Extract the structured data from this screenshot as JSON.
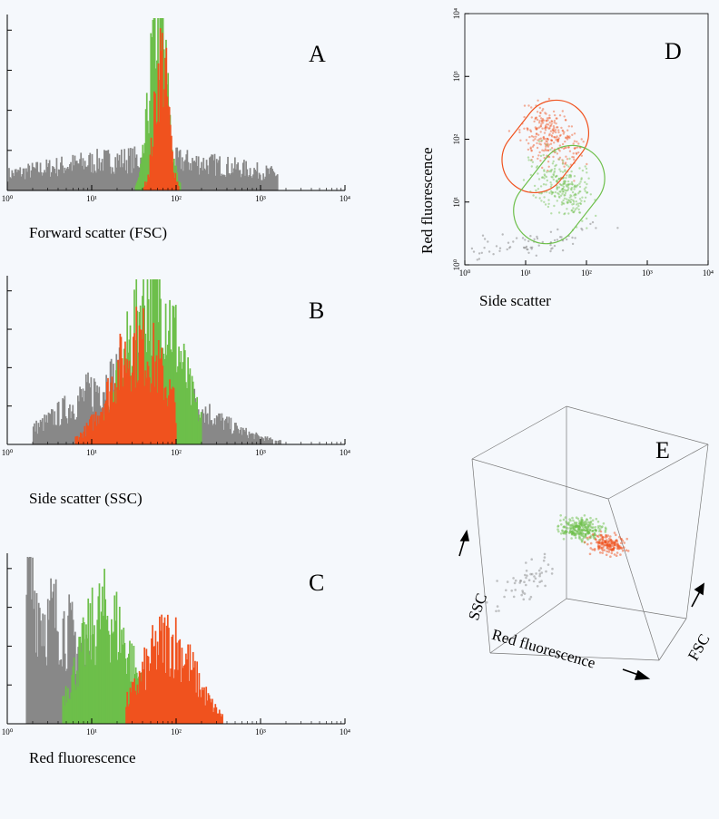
{
  "colors": {
    "gray": "#888888",
    "green": "#6dbf4a",
    "red": "#f0521e"
  },
  "panels": {
    "A": {
      "letter": "A",
      "xlabel": "Forward scatter (FSC)"
    },
    "B": {
      "letter": "B",
      "xlabel": "Side scatter (SSC)"
    },
    "C": {
      "letter": "C",
      "xlabel": "Red fluorescence"
    },
    "D": {
      "letter": "D",
      "xlabel": "Side scatter",
      "ylabel": "Red fluorescence"
    },
    "E": {
      "letter": "E",
      "axis_ssc": "SSC",
      "axis_red": "Red fluorescence",
      "axis_fsc": "FSC"
    }
  },
  "chart_data": [
    {
      "type": "area",
      "panel": "A",
      "xlabel": "Forward scatter (FSC)",
      "xscale": "log",
      "xlim": [
        1,
        10000
      ],
      "x_ticks": [
        "10⁰",
        "10¹",
        "10²",
        "10³",
        "10⁴"
      ],
      "series": [
        {
          "color": "gray",
          "peak_log": 1.6,
          "width": 1.4,
          "height": 0.18,
          "range": [
            0,
            3.2
          ]
        },
        {
          "color": "green",
          "peak_log": 1.78,
          "width": 0.1,
          "height": 1.0,
          "range": [
            1.5,
            2.05
          ]
        },
        {
          "color": "red",
          "peak_log": 1.82,
          "width": 0.08,
          "height": 0.75,
          "range": [
            1.6,
            2.05
          ]
        }
      ]
    },
    {
      "type": "area",
      "panel": "B",
      "xlabel": "Side scatter (SSC)",
      "xscale": "log",
      "xlim": [
        1,
        10000
      ],
      "x_ticks": [
        "10⁰",
        "10¹",
        "10²",
        "10³",
        "10⁴"
      ],
      "series": [
        {
          "color": "gray",
          "peak_log": 1.5,
          "width": 0.7,
          "height": 0.42,
          "range": [
            0.3,
            3.8
          ]
        },
        {
          "color": "green",
          "peak_log": 1.72,
          "width": 0.3,
          "height": 0.95,
          "range": [
            1.1,
            2.3
          ]
        },
        {
          "color": "red",
          "peak_log": 1.55,
          "width": 0.32,
          "height": 0.6,
          "range": [
            0.8,
            2.0
          ]
        }
      ]
    },
    {
      "type": "area",
      "panel": "C",
      "xlabel": "Red fluorescence",
      "xscale": "log",
      "xlim": [
        1,
        10000
      ],
      "x_ticks": [
        "10⁰",
        "10¹",
        "10²",
        "10³",
        "10⁴"
      ],
      "series": [
        {
          "color": "gray",
          "peak_log": 0.3,
          "width": 0.6,
          "height": 0.7,
          "range": [
            0.22,
            3.1
          ]
        },
        {
          "color": "green",
          "peak_log": 1.15,
          "width": 0.3,
          "height": 0.65,
          "range": [
            0.65,
            1.75
          ]
        },
        {
          "color": "red",
          "peak_log": 1.9,
          "width": 0.3,
          "height": 0.5,
          "range": [
            1.4,
            2.55
          ]
        }
      ]
    },
    {
      "type": "scatter",
      "panel": "D",
      "xlabel": "Side scatter",
      "ylabel": "Red fluorescence",
      "xscale": "log",
      "yscale": "log",
      "xlim": [
        1,
        10000
      ],
      "ylim": [
        1,
        10000
      ],
      "x_ticks": [
        "10⁰",
        "10¹",
        "10²",
        "10³",
        "10⁴"
      ],
      "y_ticks": [
        "10⁰",
        "10¹",
        "10²",
        "10³",
        "10⁴"
      ],
      "clusters": [
        {
          "color": "red",
          "center_log": [
            1.4,
            2.05
          ],
          "gate": "red"
        },
        {
          "color": "green",
          "center_log": [
            1.6,
            1.25
          ],
          "gate": "green"
        },
        {
          "color": "gray",
          "center_log": [
            1.1,
            0.35
          ]
        }
      ]
    },
    {
      "type": "scatter",
      "panel": "E",
      "dims": [
        "Red fluorescence",
        "SSC",
        "FSC"
      ],
      "clusters": [
        {
          "color": "green"
        },
        {
          "color": "red"
        },
        {
          "color": "gray"
        }
      ]
    }
  ]
}
